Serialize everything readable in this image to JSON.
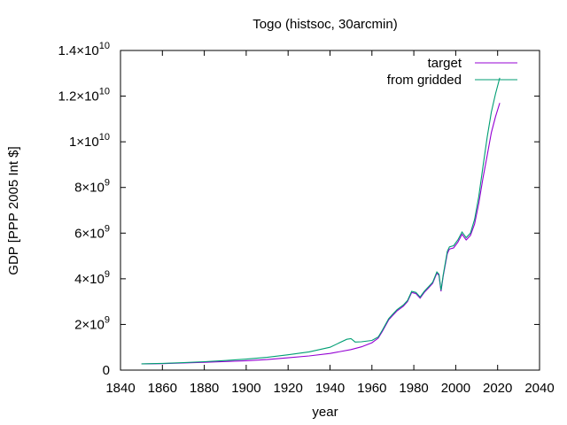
{
  "chart_data": {
    "type": "line",
    "title": "Togo (histsoc, 30arcmin)",
    "xlabel": "year",
    "ylabel": "GDP [PPP 2005 Int $]",
    "xlim": [
      1840,
      2040
    ],
    "ylim": [
      0,
      14000000000
    ],
    "x_ticks": [
      1840,
      1860,
      1880,
      1900,
      1920,
      1940,
      1960,
      1980,
      2000,
      2020,
      2040
    ],
    "x_tick_labels": [
      "1840",
      "1860",
      "1880",
      "1900",
      "1920",
      "1940",
      "1960",
      "1980",
      "2000",
      "2020",
      "2040"
    ],
    "y_ticks": [
      {
        "value": 0,
        "mant": "0",
        "exp": ""
      },
      {
        "value": 2000000000,
        "mant": "2×10",
        "exp": "9"
      },
      {
        "value": 4000000000,
        "mant": "4×10",
        "exp": "9"
      },
      {
        "value": 6000000000,
        "mant": "6×10",
        "exp": "9"
      },
      {
        "value": 8000000000,
        "mant": "8×10",
        "exp": "9"
      },
      {
        "value": 10000000000,
        "mant": "1×10",
        "exp": "10"
      },
      {
        "value": 12000000000,
        "mant": "1.2×10",
        "exp": "10"
      },
      {
        "value": 14000000000,
        "mant": "1.4×10",
        "exp": "10"
      }
    ],
    "legend_position": "top-right",
    "grid": false,
    "series": [
      {
        "name": "target",
        "color": "#9400d3",
        "points": [
          [
            1850,
            270000000
          ],
          [
            1860,
            285000000
          ],
          [
            1870,
            310000000
          ],
          [
            1880,
            340000000
          ],
          [
            1890,
            375000000
          ],
          [
            1900,
            410000000
          ],
          [
            1910,
            460000000
          ],
          [
            1920,
            540000000
          ],
          [
            1930,
            620000000
          ],
          [
            1940,
            730000000
          ],
          [
            1950,
            900000000
          ],
          [
            1955,
            1020000000
          ],
          [
            1960,
            1200000000
          ],
          [
            1963,
            1400000000
          ],
          [
            1965,
            1700000000
          ],
          [
            1968,
            2200000000
          ],
          [
            1970,
            2400000000
          ],
          [
            1972,
            2600000000
          ],
          [
            1975,
            2800000000
          ],
          [
            1977,
            3000000000
          ],
          [
            1979,
            3400000000
          ],
          [
            1981,
            3350000000
          ],
          [
            1983,
            3150000000
          ],
          [
            1985,
            3400000000
          ],
          [
            1987,
            3600000000
          ],
          [
            1989,
            3800000000
          ],
          [
            1991,
            4250000000
          ],
          [
            1992,
            4150000000
          ],
          [
            1993,
            3450000000
          ],
          [
            1994,
            4100000000
          ],
          [
            1996,
            5100000000
          ],
          [
            1997,
            5300000000
          ],
          [
            1999,
            5350000000
          ],
          [
            2001,
            5600000000
          ],
          [
            2003,
            5950000000
          ],
          [
            2005,
            5700000000
          ],
          [
            2007,
            5900000000
          ],
          [
            2009,
            6400000000
          ],
          [
            2011,
            7300000000
          ],
          [
            2013,
            8400000000
          ],
          [
            2015,
            9400000000
          ],
          [
            2017,
            10400000000
          ],
          [
            2019,
            11100000000
          ],
          [
            2021,
            11700000000
          ]
        ]
      },
      {
        "name": "from gridded",
        "color": "#009e73",
        "points": [
          [
            1850,
            275000000
          ],
          [
            1860,
            295000000
          ],
          [
            1870,
            325000000
          ],
          [
            1880,
            370000000
          ],
          [
            1890,
            420000000
          ],
          [
            1900,
            480000000
          ],
          [
            1910,
            560000000
          ],
          [
            1920,
            670000000
          ],
          [
            1930,
            800000000
          ],
          [
            1940,
            1000000000
          ],
          [
            1948,
            1350000000
          ],
          [
            1950,
            1380000000
          ],
          [
            1952,
            1230000000
          ],
          [
            1955,
            1240000000
          ],
          [
            1960,
            1300000000
          ],
          [
            1963,
            1450000000
          ],
          [
            1965,
            1750000000
          ],
          [
            1968,
            2250000000
          ],
          [
            1970,
            2450000000
          ],
          [
            1972,
            2650000000
          ],
          [
            1975,
            2850000000
          ],
          [
            1977,
            3050000000
          ],
          [
            1979,
            3450000000
          ],
          [
            1981,
            3400000000
          ],
          [
            1983,
            3200000000
          ],
          [
            1985,
            3450000000
          ],
          [
            1987,
            3650000000
          ],
          [
            1989,
            3850000000
          ],
          [
            1991,
            4300000000
          ],
          [
            1992,
            4200000000
          ],
          [
            1993,
            3500000000
          ],
          [
            1994,
            4150000000
          ],
          [
            1996,
            5200000000
          ],
          [
            1997,
            5400000000
          ],
          [
            1999,
            5450000000
          ],
          [
            2001,
            5700000000
          ],
          [
            2003,
            6050000000
          ],
          [
            2005,
            5800000000
          ],
          [
            2007,
            6000000000
          ],
          [
            2009,
            6600000000
          ],
          [
            2011,
            7600000000
          ],
          [
            2013,
            8900000000
          ],
          [
            2015,
            10200000000
          ],
          [
            2017,
            11300000000
          ],
          [
            2019,
            12100000000
          ],
          [
            2021,
            12800000000
          ]
        ]
      }
    ]
  }
}
